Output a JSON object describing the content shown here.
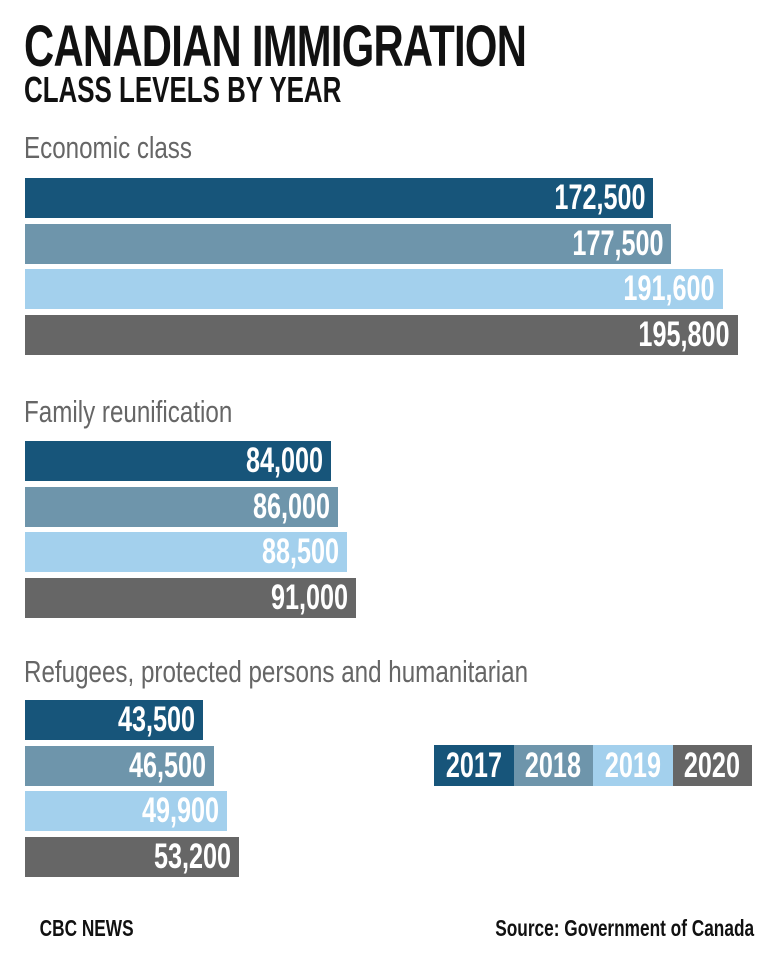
{
  "chart_data": {
    "type": "bar",
    "orientation": "horizontal",
    "title": "CANADIAN IMMIGRATION",
    "subtitle": "CLASS LEVELS BY YEAR",
    "categories": [
      "Economic class",
      "Family reunification",
      "Refugees, protected persons and humanitarian"
    ],
    "series": [
      {
        "name": "2017",
        "color": "#17557a",
        "values": [
          172500,
          84000,
          43500
        ],
        "labels": [
          "172,500",
          "84,000",
          "43,500"
        ]
      },
      {
        "name": "2018",
        "color": "#6e95ab",
        "values": [
          177500,
          86000,
          46500
        ],
        "labels": [
          "177,500",
          "86,000",
          "46,500"
        ]
      },
      {
        "name": "2019",
        "color": "#a3d0ed",
        "values": [
          191600,
          88500,
          49900
        ],
        "labels": [
          "191,600",
          "88,500",
          "49,900"
        ]
      },
      {
        "name": "2020",
        "color": "#666666",
        "values": [
          195800,
          91000,
          53200
        ],
        "labels": [
          "195,800",
          "91,000",
          "53,200"
        ]
      }
    ],
    "legend_position": "bottom-right",
    "grid": false
  },
  "footer": {
    "brand": "CBC NEWS",
    "source": "Source: Government of Canada"
  }
}
